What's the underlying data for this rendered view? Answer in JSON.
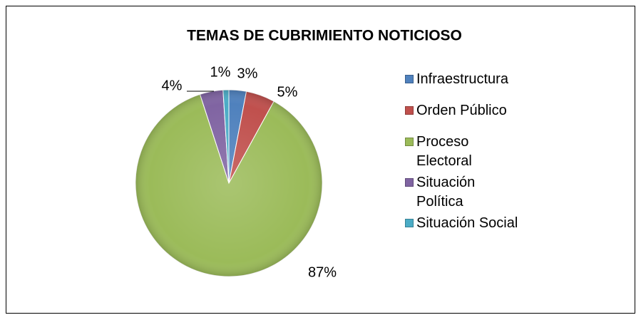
{
  "chart_data": {
    "type": "pie",
    "title": "TEMAS DE CUBRIMIENTO NOTICIOSO",
    "categories": [
      "Infraestructura",
      "Orden Público",
      "Proceso Electoral",
      "Situación Política",
      "Situación Social"
    ],
    "values": [
      3,
      5,
      87,
      4,
      1
    ],
    "value_labels": [
      "3%",
      "5%",
      "87%",
      "4%",
      "1%"
    ],
    "colors": [
      "#4f81bd",
      "#c0504d",
      "#9bbb59",
      "#8064a2",
      "#4bacc6"
    ],
    "legend": "right"
  }
}
